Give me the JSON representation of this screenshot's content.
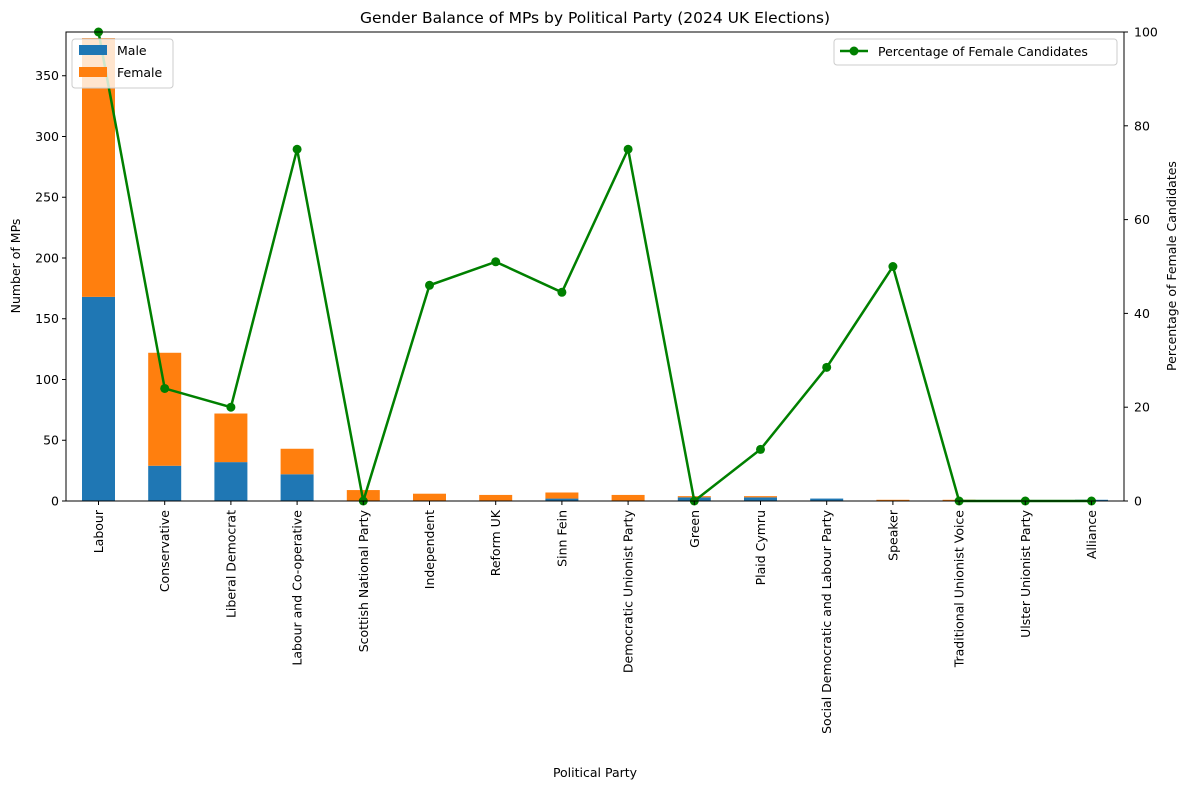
{
  "chart_data": {
    "type": "bar",
    "title": "Gender Balance of MPs by Political Party (2024 UK Elections)",
    "xlabel": "Political Party",
    "ylabel": "Number of MPs",
    "y2label": "Percentage of Female Candidates",
    "ylim": [
      0,
      386
    ],
    "yticks": [
      0,
      50,
      100,
      150,
      200,
      250,
      300,
      350
    ],
    "y2lim": [
      0,
      100
    ],
    "y2ticks": [
      0,
      20,
      40,
      60,
      80,
      100
    ],
    "stacked": true,
    "categories": [
      "Labour",
      "Conservative",
      "Liberal Democrat",
      "Labour and Co-operative",
      "Scottish National Party",
      "Independent",
      "Reform UK",
      "Sinn Fein",
      "Democratic Unionist Party",
      "Green",
      "Plaid Cymru",
      "Social Democratic and Labour Party",
      "Speaker",
      "Traditional Unionist Voice",
      "Ulster Unionist Party",
      "Alliance"
    ],
    "series": [
      {
        "name": "Male",
        "color": "#1f77b4",
        "values": [
          168,
          29,
          32,
          22,
          0,
          0,
          0,
          2,
          0,
          3,
          3,
          2,
          0,
          0,
          0,
          1
        ]
      },
      {
        "name": "Female",
        "color": "#ff7f0e",
        "values": [
          213,
          93,
          40,
          21,
          9,
          6,
          5,
          5,
          5,
          1,
          1,
          0,
          1,
          1,
          0,
          0
        ]
      }
    ],
    "line_series": {
      "name": "Percentage of Female Candidates",
      "color": "#008000",
      "axis": "right",
      "values": [
        100,
        24,
        20,
        75,
        0,
        46,
        51,
        44.5,
        75,
        0,
        11,
        28.5,
        50,
        0,
        0,
        0
      ]
    },
    "legend_left": "top-left",
    "legend_right": "top-right",
    "grid": false
  }
}
